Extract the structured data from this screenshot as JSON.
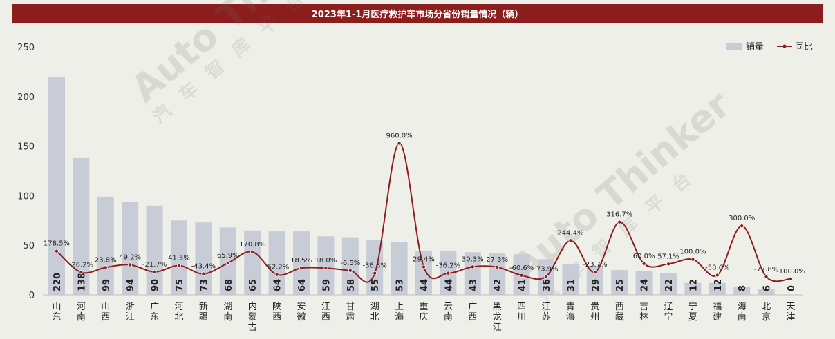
{
  "title": "2023年1-1月医疗救护车市场分省份销量情况（辆）",
  "legend": {
    "bar_label": "销量",
    "line_label": "同比",
    "position": "top-right"
  },
  "watermark": {
    "text": "Auto Thinker",
    "subtext": "汽车智库平台"
  },
  "colors": {
    "title_bg": "#8b1d1d",
    "bar": "#c8ccd6",
    "line": "#8b1d1d",
    "background": "#efefe9"
  },
  "chart_data": {
    "type": "bar",
    "categories": [
      "山东",
      "河南",
      "山西",
      "浙江",
      "广东",
      "河北",
      "新疆",
      "湖南",
      "内蒙古",
      "陕西",
      "安徽",
      "江西",
      "甘肃",
      "湖北",
      "上海",
      "重庆",
      "云南",
      "广西",
      "黑龙江",
      "四川",
      "江苏",
      "青海",
      "贵州",
      "西藏",
      "吉林",
      "辽宁",
      "宁夏",
      "福建",
      "海南",
      "北京",
      "天津"
    ],
    "series": [
      {
        "name": "销量",
        "type": "bar",
        "values": [
          220,
          138,
          99,
          94,
          90,
          75,
          73,
          68,
          65,
          64,
          64,
          59,
          58,
          55,
          53,
          44,
          44,
          43,
          42,
          41,
          36,
          31,
          29,
          25,
          24,
          22,
          12,
          12,
          8,
          6,
          0
        ]
      },
      {
        "name": "同比",
        "type": "line",
        "labels": [
          "178.5%",
          "-26.2%",
          "23.8%",
          "49.2%",
          "-21.7%",
          "41.5%",
          "-43.4%",
          "65.9%",
          "170.8%",
          "-52.2%",
          "18.5%",
          "18.0%",
          "-6.5%",
          "-36.8%",
          "960.0%",
          "29.4%",
          "-36.2%",
          "30.3%",
          "27.3%",
          "-60.6%",
          "-73.9%",
          "244.4%",
          "-23.7%",
          "316.7%",
          "60.0%",
          "57.1%",
          "100.0%",
          "-58.6%",
          "300.0%",
          "-77.8%",
          "-100.0%"
        ]
      }
    ],
    "ylim": [
      0,
      250
    ],
    "yticks": [
      0,
      50,
      100,
      150,
      200,
      250
    ],
    "grid": false
  }
}
